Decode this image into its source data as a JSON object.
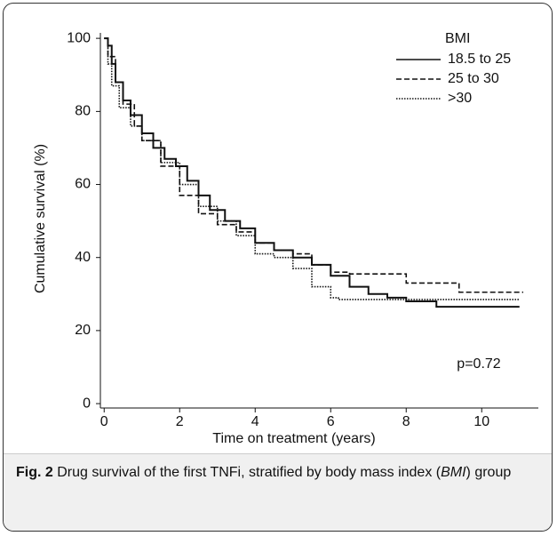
{
  "chart_data": {
    "type": "line",
    "step": true,
    "x_label": "Time on treatment (years)",
    "y_label": "Cumulative survival (%)",
    "xlim": [
      -0.1,
      11.5
    ],
    "xticks": [
      0,
      2,
      4,
      6,
      8,
      10
    ],
    "ylim": [
      -1.2,
      101.5
    ],
    "yticks": [
      0,
      20,
      40,
      60,
      80,
      100
    ],
    "legend_title": "BMI",
    "legend_position": "upper right",
    "annotation": "p=0.72",
    "series": [
      {
        "name": "18.5 to 25",
        "color": "#111111",
        "dash": "solid",
        "x": [
          0,
          0.1,
          0.2,
          0.3,
          0.5,
          0.7,
          1,
          1.3,
          1.6,
          1.9,
          2.2,
          2.5,
          2.8,
          3.2,
          3.6,
          4,
          4.5,
          5,
          5.5,
          6,
          6.5,
          7,
          7.5,
          8,
          8.8,
          11
        ],
        "values": [
          100,
          98,
          93,
          88,
          83,
          79,
          74,
          70,
          67,
          65,
          61,
          57,
          53,
          50,
          48,
          44,
          42,
          40,
          38,
          35,
          32,
          30,
          29,
          28,
          26.5,
          26.5
        ]
      },
      {
        "name": "25 to 30",
        "color": "#111111",
        "dash": "dashed",
        "x": [
          0,
          0.1,
          0.3,
          0.5,
          0.8,
          1,
          1.5,
          2,
          2.5,
          3,
          3.5,
          4,
          4.5,
          5,
          5.5,
          6,
          6.5,
          7,
          8,
          9.4,
          11.1
        ],
        "values": [
          100,
          95,
          88,
          82,
          76,
          72,
          65,
          57,
          52,
          49,
          47,
          44,
          42,
          41,
          38,
          36,
          35.5,
          35.5,
          33,
          30.5,
          30.5
        ]
      },
      {
        "name": ">30",
        "color": "#111111",
        "dash": "dotted",
        "x": [
          0,
          0.1,
          0.2,
          0.4,
          0.7,
          1,
          1.5,
          2,
          2.5,
          3,
          3.5,
          4,
          4.5,
          5,
          5.5,
          6,
          6.2,
          7,
          8,
          11
        ],
        "values": [
          100,
          93,
          87,
          81,
          76,
          72,
          66,
          60,
          54,
          50,
          46,
          41,
          40,
          37,
          32,
          29,
          28.5,
          28.5,
          28.5,
          28.5
        ]
      }
    ],
    "caption": {
      "label": "Fig. 2",
      "text": "Drug survival of the first TNFi, stratified by body mass index (",
      "italic": "BMI",
      "end": ") group"
    }
  }
}
